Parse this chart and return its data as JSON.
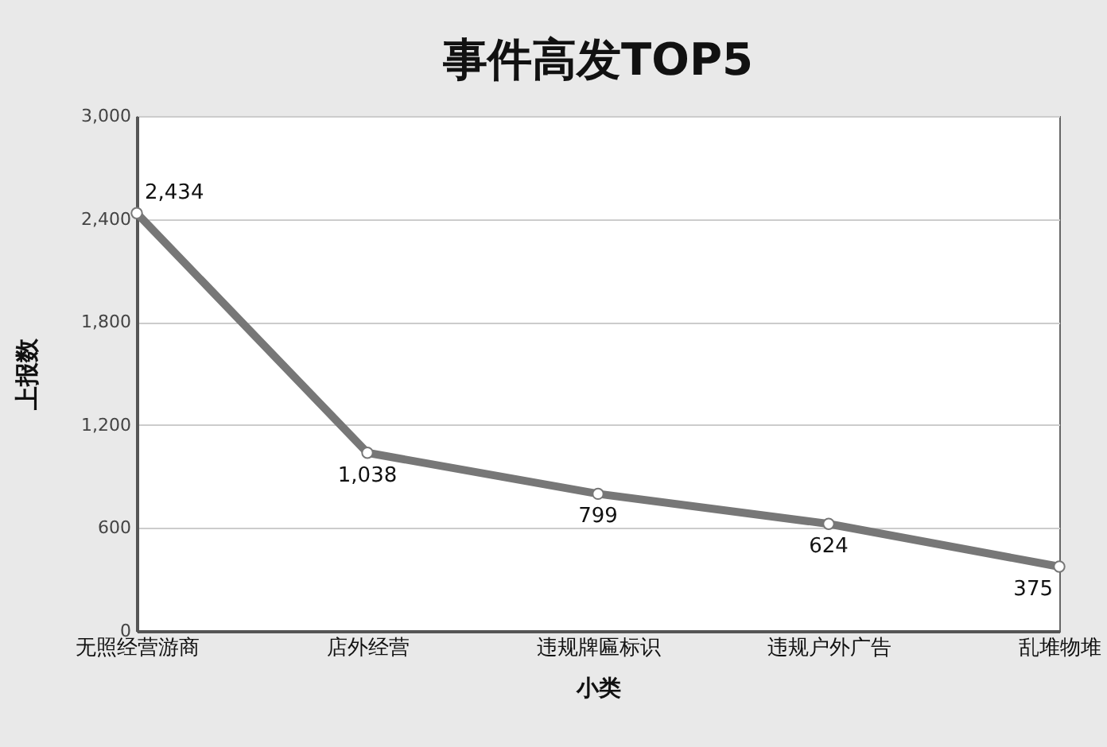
{
  "chart_data": {
    "type": "line",
    "title": "事件高发TOP5",
    "xlabel": "小类",
    "ylabel": "上报数",
    "categories": [
      "无照经营游商",
      "店外经营",
      "违规牌匾标识",
      "违规户外广告",
      "乱堆物堆"
    ],
    "series": [
      {
        "color": "#777777",
        "values": [
          2434,
          1038,
          799,
          624,
          375
        ],
        "value_labels": [
          "2,434",
          "1,038",
          "799",
          "624",
          "375"
        ]
      }
    ],
    "ylim": [
      0,
      3000
    ],
    "yticks": [
      0,
      600,
      {
        "value": 1200,
        "label": "1,200"
      },
      {
        "value": 1800,
        "label": "1,800"
      },
      {
        "value": 2400,
        "label": "2,400"
      },
      {
        "value": 3000,
        "label": "3,000"
      }
    ],
    "grid": "y",
    "marker": "circle"
  }
}
